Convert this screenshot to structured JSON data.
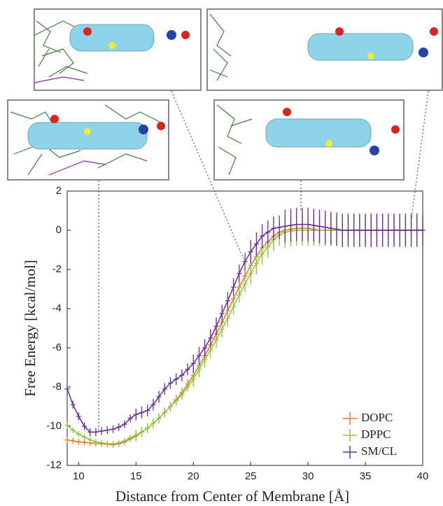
{
  "chart_data": {
    "type": "line",
    "xlabel": "Distance from Center of Membrane [Å]",
    "ylabel": "Free Energy [kcal/mol]",
    "x": [
      9,
      9.5,
      10,
      10.5,
      11,
      11.5,
      12,
      12.5,
      13,
      13.5,
      14,
      14.5,
      15,
      15.5,
      16,
      16.5,
      17,
      17.5,
      18,
      18.5,
      19,
      19.5,
      20,
      20.5,
      21,
      21.5,
      22,
      22.5,
      23,
      23.5,
      24,
      24.5,
      25,
      25.5,
      26,
      26.5,
      27,
      27.5,
      28,
      28.5,
      29,
      29.5,
      30,
      30.5,
      31,
      31.5,
      32,
      32.5,
      33,
      33.5,
      34,
      34.5,
      35,
      35.5,
      36,
      36.5,
      37,
      37.5,
      38,
      38.5,
      39,
      39.5,
      40
    ],
    "series": [
      {
        "name": "DOPC",
        "color": "#e8771e",
        "values": [
          -10.7,
          -10.75,
          -10.8,
          -10.82,
          -10.85,
          -10.88,
          -10.9,
          -10.92,
          -10.95,
          -10.9,
          -10.8,
          -10.65,
          -10.5,
          -10.3,
          -10.1,
          -9.85,
          -9.6,
          -9.3,
          -9.0,
          -8.65,
          -8.3,
          -7.85,
          -7.4,
          -6.9,
          -6.4,
          -5.85,
          -5.3,
          -4.7,
          -4.1,
          -3.5,
          -2.9,
          -2.35,
          -1.8,
          -1.35,
          -0.9,
          -0.6,
          -0.3,
          -0.1,
          0,
          0.05,
          0.1,
          0.1,
          0.1,
          0.05,
          0,
          0,
          0,
          0,
          0,
          0,
          0,
          0,
          0,
          0,
          0,
          0,
          0,
          0,
          0,
          0,
          0,
          0,
          0
        ],
        "errors": [
          0.15,
          0.15,
          0.15,
          0.15,
          0.15,
          0.15,
          0.15,
          0.15,
          0.15,
          0.15,
          0.15,
          0.15,
          0.25,
          0.25,
          0.25,
          0.25,
          0.25,
          0.25,
          0.25,
          0.25,
          0.25,
          0.25,
          0.4,
          0.4,
          0.4,
          0.4,
          0.4,
          0.4,
          0.4,
          0.4,
          0.4,
          0.4,
          0.55,
          0.55,
          0.55,
          0.55,
          0.55,
          0.55,
          0.75,
          0.75,
          0.75,
          0.75,
          0.75,
          0.75,
          0.75,
          0.75,
          0.75,
          0.75,
          0.75,
          0.75,
          0.75,
          0.75,
          0.75,
          0.75,
          0.75,
          0.75,
          0.75,
          0.75,
          0.75,
          0.75,
          0.75,
          0.75,
          0.75
        ]
      },
      {
        "name": "DPPC",
        "color": "#8dc63f",
        "values": [
          -9.95,
          -10.2,
          -10.4,
          -10.55,
          -10.7,
          -10.8,
          -10.85,
          -10.88,
          -10.9,
          -10.85,
          -10.75,
          -10.6,
          -10.45,
          -10.3,
          -10.1,
          -9.85,
          -9.6,
          -9.3,
          -9.0,
          -8.7,
          -8.4,
          -8.0,
          -7.6,
          -7.1,
          -6.6,
          -6.1,
          -5.6,
          -5.05,
          -4.5,
          -3.9,
          -3.3,
          -2.75,
          -2.2,
          -1.7,
          -1.2,
          -0.85,
          -0.5,
          -0.25,
          -0.1,
          -0.05,
          0,
          0,
          0,
          0,
          0,
          0,
          0,
          0,
          0,
          0,
          0,
          0,
          0,
          0,
          0,
          0,
          0,
          0,
          0,
          0,
          0,
          0,
          0
        ],
        "errors": [
          0.15,
          0.15,
          0.15,
          0.15,
          0.15,
          0.15,
          0.15,
          0.15,
          0.15,
          0.15,
          0.15,
          0.15,
          0.25,
          0.25,
          0.25,
          0.25,
          0.25,
          0.25,
          0.25,
          0.25,
          0.25,
          0.25,
          0.4,
          0.4,
          0.4,
          0.4,
          0.4,
          0.4,
          0.4,
          0.4,
          0.4,
          0.4,
          0.55,
          0.55,
          0.55,
          0.55,
          0.55,
          0.55,
          0.8,
          0.8,
          0.8,
          0.8,
          0.8,
          0.8,
          0.8,
          0.8,
          0.8,
          0.8,
          0.8,
          0.8,
          0.8,
          0.8,
          0.8,
          0.8,
          0.8,
          0.8,
          0.8,
          0.8,
          0.8,
          0.8,
          0.8,
          0.8,
          0.8
        ]
      },
      {
        "name": "SM/CL",
        "color": "#6a2c9a",
        "values": [
          -8.1,
          -8.9,
          -9.5,
          -10.0,
          -10.3,
          -10.3,
          -10.25,
          -10.2,
          -10.15,
          -10.05,
          -9.9,
          -9.6,
          -9.4,
          -9.3,
          -9.2,
          -8.9,
          -8.5,
          -8.1,
          -7.8,
          -7.6,
          -7.4,
          -7.1,
          -6.8,
          -6.4,
          -6.0,
          -5.5,
          -4.9,
          -4.25,
          -3.6,
          -2.9,
          -2.2,
          -1.6,
          -1.1,
          -0.7,
          -0.3,
          -0.1,
          0.1,
          0.15,
          0.2,
          0.25,
          0.3,
          0.3,
          0.3,
          0.25,
          0.2,
          0.15,
          0.1,
          0.05,
          0,
          0,
          0,
          0,
          0,
          0,
          0,
          0,
          0,
          0,
          0,
          0,
          0,
          0,
          0
        ],
        "errors": [
          0.2,
          0.2,
          0.2,
          0.2,
          0.2,
          0.2,
          0.2,
          0.2,
          0.2,
          0.2,
          0.2,
          0.2,
          0.3,
          0.3,
          0.3,
          0.3,
          0.3,
          0.3,
          0.3,
          0.3,
          0.3,
          0.3,
          0.45,
          0.45,
          0.45,
          0.45,
          0.45,
          0.45,
          0.45,
          0.45,
          0.45,
          0.45,
          0.6,
          0.6,
          0.6,
          0.6,
          0.6,
          0.6,
          0.85,
          0.85,
          0.85,
          0.85,
          0.85,
          0.85,
          0.85,
          0.85,
          0.85,
          0.85,
          0.85,
          0.85,
          0.85,
          0.85,
          0.85,
          0.85,
          0.85,
          0.85,
          0.85,
          0.85,
          0.85,
          0.85,
          0.85,
          0.85,
          0.85
        ]
      }
    ],
    "xlim": [
      9,
      40
    ],
    "ylim": [
      -12,
      2
    ],
    "xticks": [
      10,
      15,
      20,
      25,
      30,
      35,
      40
    ],
    "yticks": [
      -12,
      -10,
      -8,
      -6,
      -4,
      -2,
      0,
      2
    ],
    "legend": "lower right"
  }
}
